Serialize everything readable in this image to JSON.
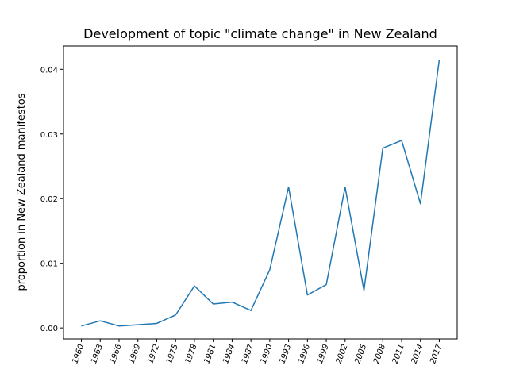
{
  "chart_data": {
    "type": "line",
    "title": "Development of topic \"climate change\" in New Zealand",
    "xlabel": "",
    "ylabel": "proportion in New Zealand manifestos",
    "x": [
      "1960",
      "1963",
      "1966",
      "1969",
      "1972",
      "1975",
      "1978",
      "1981",
      "1984",
      "1987",
      "1990",
      "1993",
      "1996",
      "1999",
      "2002",
      "2005",
      "2008",
      "2011",
      "2014",
      "2017"
    ],
    "series": [
      {
        "values": [
          0.0003,
          0.0011,
          0.0003,
          0.0005,
          0.0007,
          0.002,
          0.0065,
          0.0037,
          0.004,
          0.0027,
          0.009,
          0.0218,
          0.0051,
          0.0067,
          0.0218,
          0.0058,
          0.0278,
          0.029,
          0.0192,
          0.0415
        ],
        "color": "#1f77b4"
      }
    ],
    "yticks": [
      "0.00",
      "0.01",
      "0.02",
      "0.03",
      "0.04"
    ],
    "ylim": [
      -0.0017,
      0.0436
    ],
    "grid": false
  }
}
